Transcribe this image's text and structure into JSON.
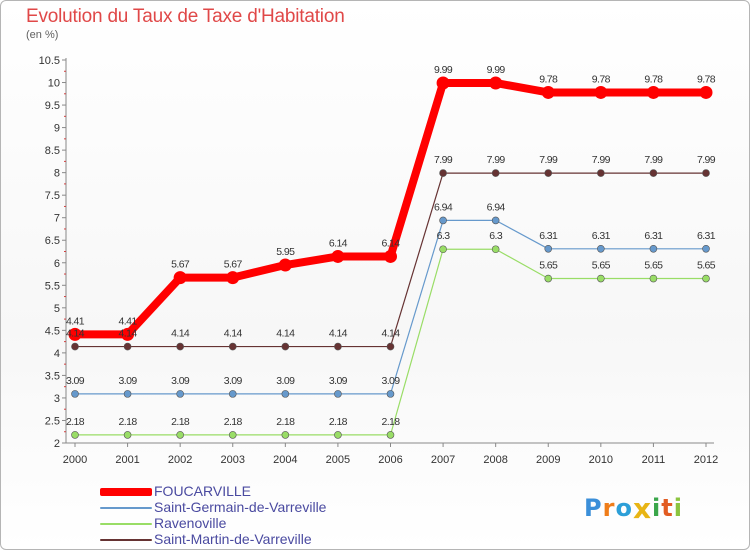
{
  "chart_title": "Evolution du Taux de Taxe d'Habitation",
  "chart_subtitle": "(en %)",
  "logo": {
    "letters": [
      "P",
      "r",
      "o",
      "x",
      "i",
      "t",
      "i"
    ],
    "colors": [
      "#3b8fd9",
      "#ef7d1a",
      "#2c9fd8",
      "#e8b515",
      "#3aa64a",
      "#e25c22",
      "#8bc43f"
    ]
  },
  "chart_data": {
    "type": "line",
    "title": "Evolution du Taux de Taxe d'Habitation",
    "ylabel": "(en %)",
    "xlabel": "",
    "x": [
      "2000",
      "2001",
      "2002",
      "2003",
      "2004",
      "2005",
      "2006",
      "2007",
      "2008",
      "2009",
      "2010",
      "2011",
      "2012"
    ],
    "ylim": [
      2,
      10.5
    ],
    "yticks": [
      "2",
      "2.5",
      "3",
      "3.5",
      "4",
      "4.5",
      "5",
      "5.5",
      "6",
      "6.5",
      "7",
      "7.5",
      "8",
      "8.5",
      "9",
      "9.5",
      "10",
      "10.5"
    ],
    "grid": false,
    "legend_position": "bottom-left",
    "series": [
      {
        "name": "FOUCARVILLE",
        "color": "#ff0000",
        "values": [
          4.41,
          4.41,
          5.67,
          5.67,
          5.95,
          6.14,
          6.14,
          9.99,
          9.99,
          9.78,
          9.78,
          9.78,
          9.78
        ],
        "labels": [
          "4.41",
          "4.41",
          "5.67",
          "5.67",
          "5.95",
          "6.14",
          "6.14",
          "9.99",
          "9.99",
          "9.78",
          "9.78",
          "9.78",
          "9.78"
        ]
      },
      {
        "name": "Saint-Germain-de-Varreville",
        "color": "#6699cc",
        "values": [
          3.09,
          3.09,
          3.09,
          3.09,
          3.09,
          3.09,
          3.09,
          6.94,
          6.94,
          6.31,
          6.31,
          6.31,
          6.31
        ],
        "labels": [
          "3.09",
          "3.09",
          "3.09",
          "3.09",
          "3.09",
          "3.09",
          "3.09",
          "6.94",
          "6.94",
          "6.31",
          "6.31",
          "6.31",
          "6.31"
        ]
      },
      {
        "name": "Ravenoville",
        "color": "#99dd66",
        "values": [
          2.18,
          2.18,
          2.18,
          2.18,
          2.18,
          2.18,
          2.18,
          6.3,
          6.3,
          5.65,
          5.65,
          5.65,
          5.65
        ],
        "labels": [
          "2.18",
          "2.18",
          "2.18",
          "2.18",
          "2.18",
          "2.18",
          "2.18",
          "6.3",
          "6.3",
          "5.65",
          "5.65",
          "5.65",
          "5.65"
        ]
      },
      {
        "name": "Saint-Martin-de-Varreville",
        "color": "#663333",
        "values": [
          4.14,
          4.14,
          4.14,
          4.14,
          4.14,
          4.14,
          4.14,
          7.99,
          7.99,
          7.99,
          7.99,
          7.99,
          7.99
        ],
        "labels": [
          "4.14",
          "4.14",
          "4.14",
          "4.14",
          "4.14",
          "4.14",
          "4.14",
          "7.99",
          "7.99",
          "7.99",
          "7.99",
          "7.99",
          "7.99"
        ]
      }
    ]
  }
}
